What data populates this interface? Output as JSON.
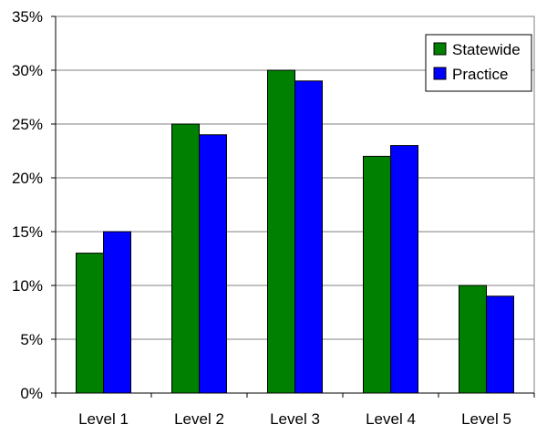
{
  "chart_data": {
    "type": "bar",
    "categories": [
      "Level 1",
      "Level 2",
      "Level 3",
      "Level 4",
      "Level 5"
    ],
    "series": [
      {
        "name": "Statewide",
        "values": [
          13,
          25,
          30,
          22,
          10
        ],
        "color": "#008000"
      },
      {
        "name": "Practice",
        "values": [
          15,
          24,
          29,
          23,
          9
        ],
        "color": "#0000ff"
      }
    ],
    "ylim": [
      0,
      35
    ],
    "ytick_step": 5,
    "ytick_labels": [
      "0%",
      "5%",
      "10%",
      "15%",
      "20%",
      "25%",
      "30%",
      "35%"
    ],
    "grid": true,
    "legend_position": "top-right",
    "title": "",
    "xlabel": "",
    "ylabel": ""
  }
}
